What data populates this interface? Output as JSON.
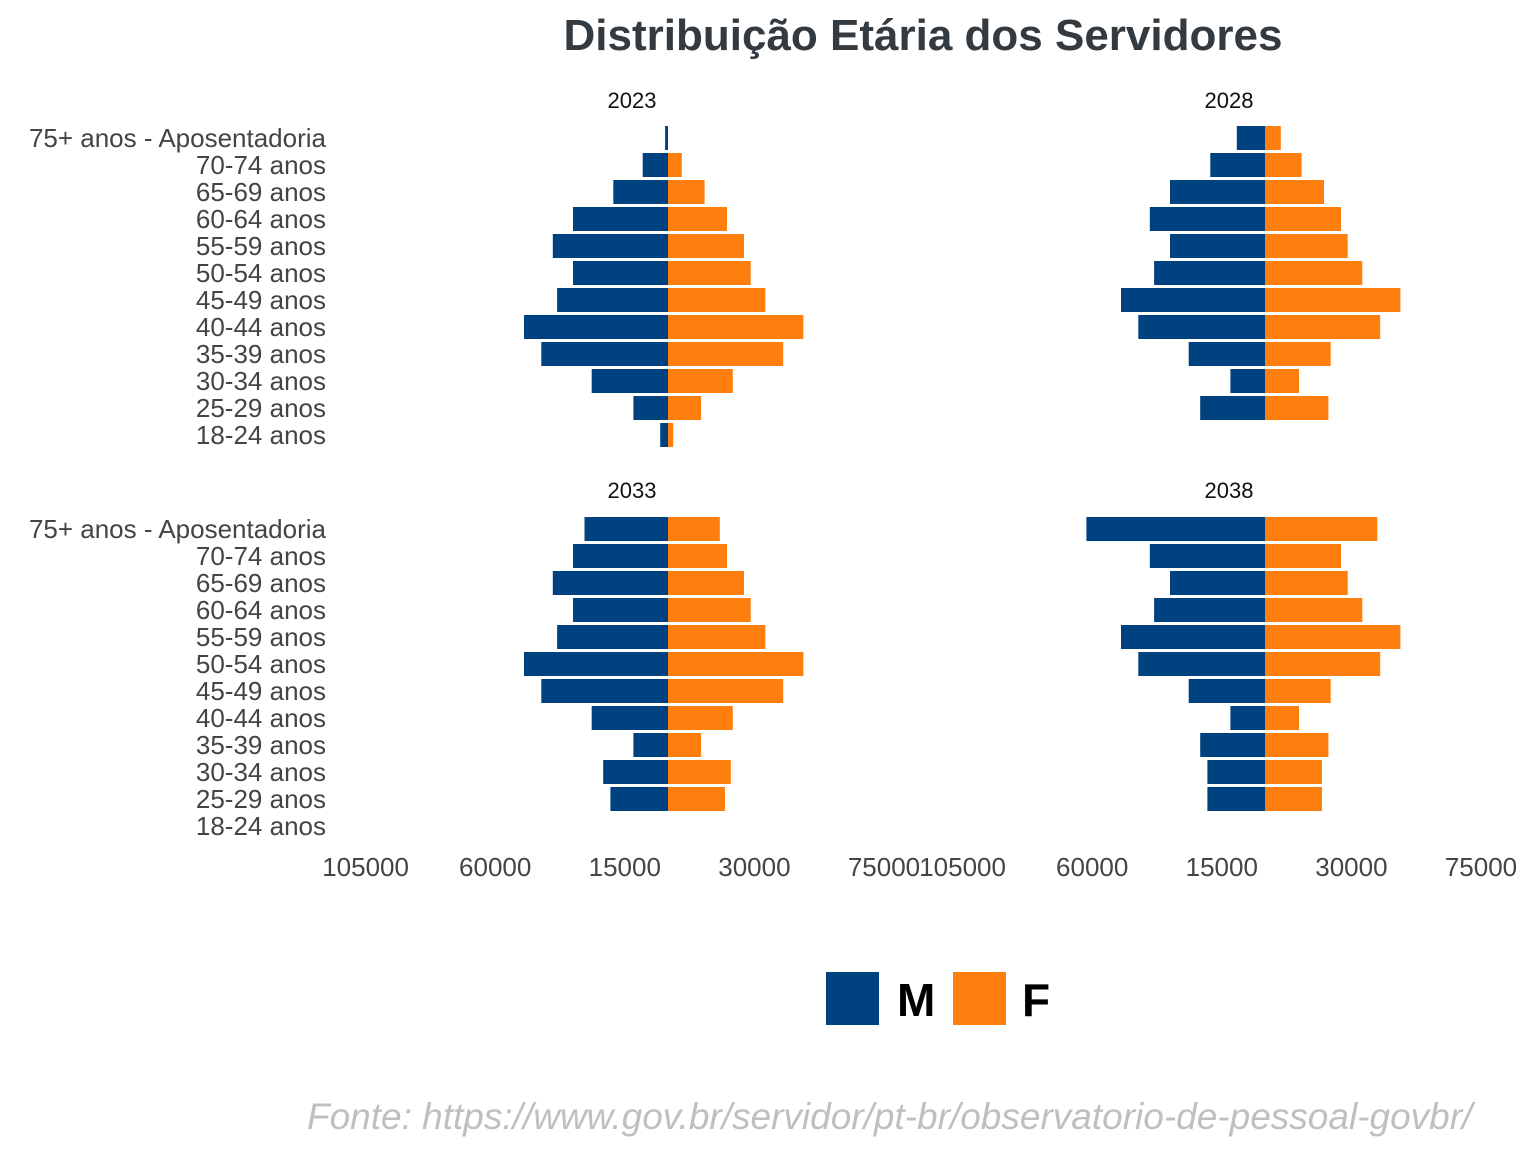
{
  "chart_data": {
    "type": "bar",
    "title": "Distribuição Etária dos Servidores",
    "categories": [
      "18-24 anos",
      "25-29 anos",
      "30-34 anos",
      "35-39 anos",
      "40-44 anos",
      "45-49 anos",
      "50-54 anos",
      "55-59 anos",
      "60-64 anos",
      "65-69 anos",
      "70-74 anos",
      "75+ anos - Aposentadoria"
    ],
    "axis_ticks": [
      -105000,
      -60000,
      -15000,
      30000,
      75000
    ],
    "axis_tick_labels": [
      "105000",
      "60000",
      "15000",
      "30000",
      "75000"
    ],
    "xlim": [
      -105000,
      75000
    ],
    "legend": [
      {
        "label": "M",
        "color": "#00427f"
      },
      {
        "label": "F",
        "color": "#ff7f0e"
      }
    ],
    "legend_placement": "bottom",
    "grid": false,
    "panels": [
      {
        "title": "2023",
        "series": [
          {
            "name": "M",
            "values": [
              -2700,
              -12000,
              -26500,
              -44000,
              -50000,
              -38500,
              -33000,
              -40000,
              -33000,
              -19000,
              -8800,
              -1000
            ]
          },
          {
            "name": "F",
            "values": [
              1800,
              11500,
              22500,
              40000,
              47000,
              33800,
              28700,
              26400,
              20500,
              12700,
              4800,
              0
            ]
          }
        ]
      },
      {
        "title": "2028",
        "series": [
          {
            "name": "M",
            "values": [
              0,
              -22500,
              -12000,
              -26500,
              -44000,
              -50000,
              -38500,
              -33000,
              -40000,
              -33000,
              -19000,
              -9800
            ]
          },
          {
            "name": "F",
            "values": [
              0,
              22000,
              11800,
              22800,
              40000,
              47000,
              33800,
              28700,
              26400,
              20500,
              12700,
              5500
            ]
          }
        ]
      },
      {
        "title": "2033",
        "series": [
          {
            "name": "M",
            "values": [
              0,
              -20000,
              -22500,
              -12000,
              -26500,
              -44000,
              -50000,
              -38500,
              -33000,
              -40000,
              -33000,
              -29000
            ]
          },
          {
            "name": "F",
            "values": [
              0,
              19800,
              21800,
              11500,
              22500,
              40000,
              47000,
              33800,
              28700,
              26400,
              20500,
              18000
            ]
          }
        ]
      },
      {
        "title": "2038",
        "series": [
          {
            "name": "M",
            "values": [
              0,
              -20000,
              -20000,
              -22500,
              -12000,
              -26500,
              -44000,
              -50000,
              -38500,
              -33000,
              -40000,
              -62000
            ]
          },
          {
            "name": "F",
            "values": [
              0,
              19800,
              19800,
              22000,
              11800,
              22800,
              40000,
              47000,
              33800,
              28700,
              26400,
              39000
            ]
          }
        ]
      }
    ]
  },
  "source": "Fonte: https://www.gov.br/servidor/pt-br/observatorio-de-pessoal-govbr/"
}
